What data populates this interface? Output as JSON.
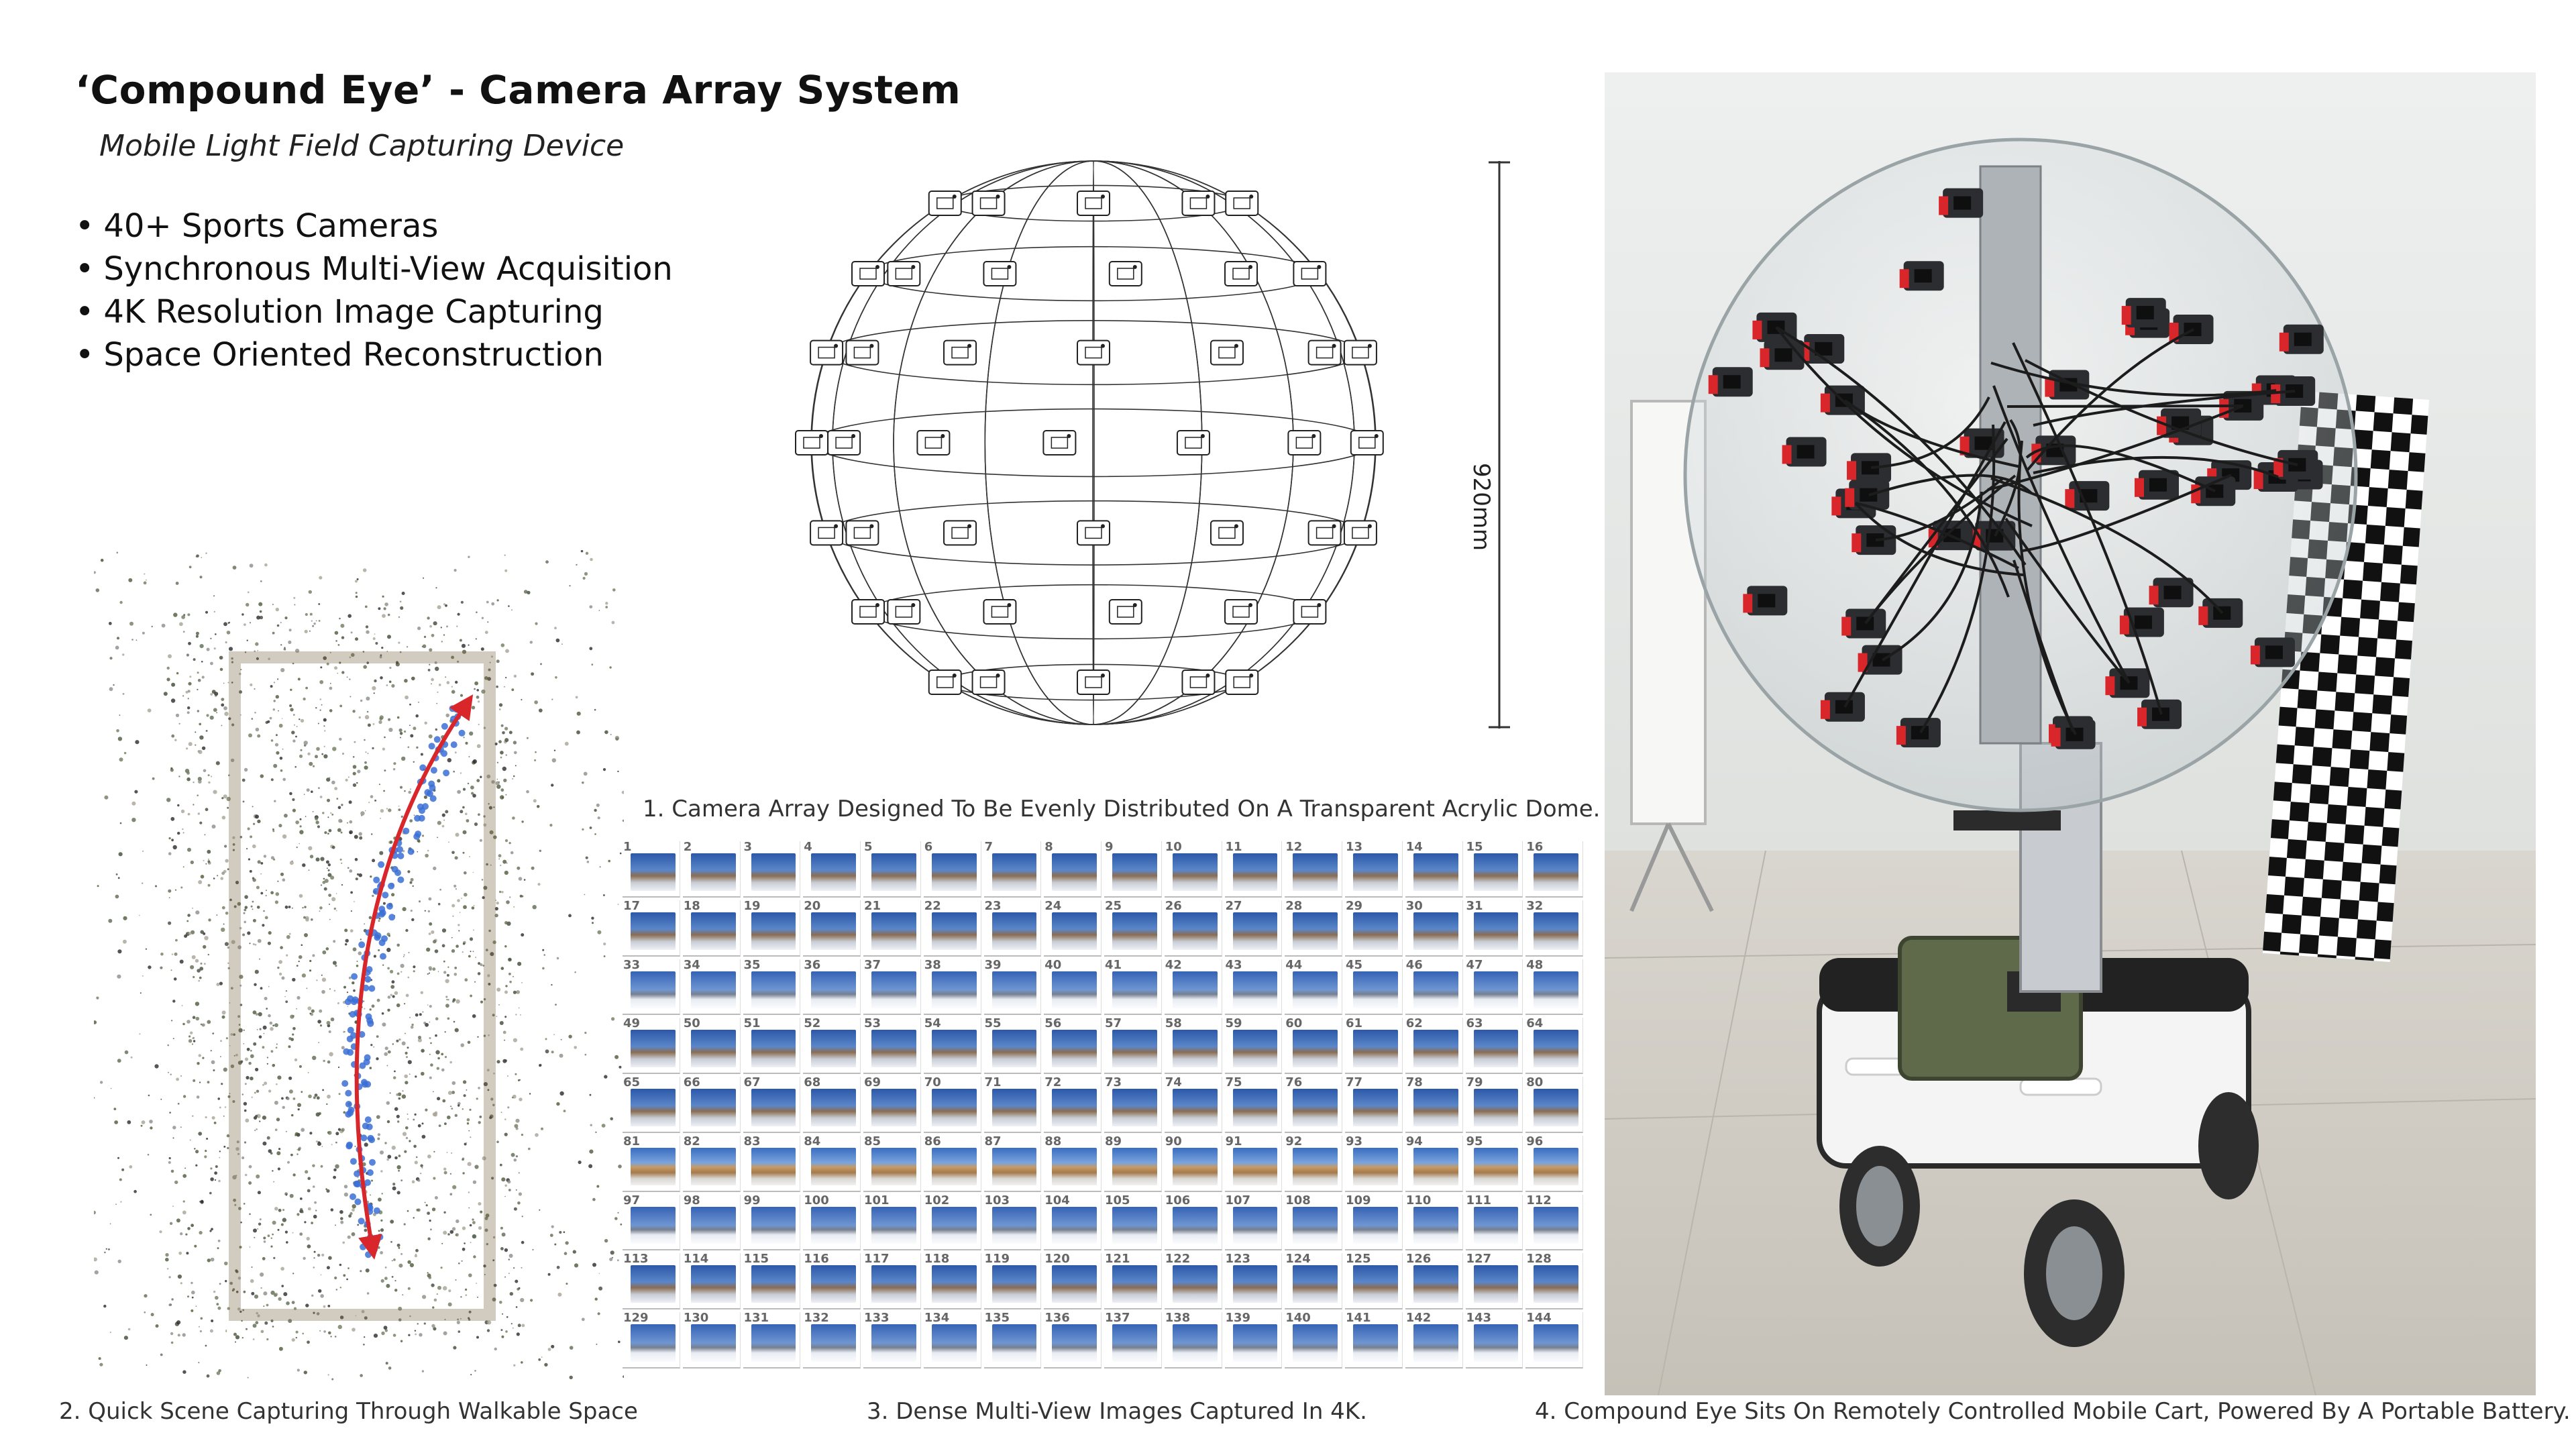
{
  "header": {
    "title": "‘Compound Eye’ - Camera Array System",
    "subtitle": "Mobile Light Field Capturing Device",
    "bullets": [
      "40+ Sports Cameras",
      "Synchronous Multi-View Acquisition",
      "4K Resolution Image Capturing",
      "Space Oriented Reconstruction"
    ]
  },
  "dome": {
    "dimension_label": "920mm"
  },
  "captions": {
    "c1": "1. Camera Array Designed To Be Evenly Distributed On A Transparent Acrylic Dome.",
    "c2": "2. Quick Scene Capturing Through Walkable Space",
    "c3": "3. Dense Multi-View Images Captured In 4K.",
    "c4": "4.  Compound Eye Sits On Remotely Controlled Mobile Cart, Powered By A Portable Battery."
  },
  "image_grid": {
    "count": 144,
    "columns": 16
  },
  "colors": {
    "red_arrow": "#d8262a",
    "camera_path_blue": "#3b6fd6",
    "mount_red": "#d8262a",
    "checker_black": "#111111"
  }
}
